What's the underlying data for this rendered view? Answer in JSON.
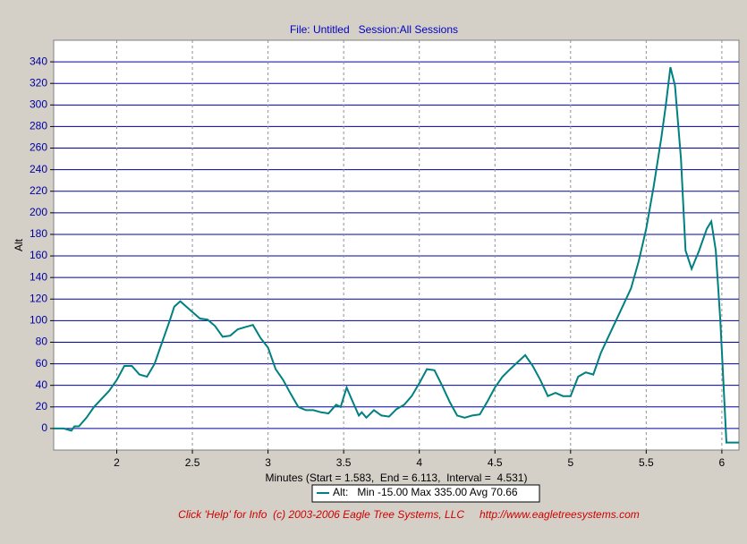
{
  "chart_data": {
    "type": "line",
    "title": "File: Untitled   Session:All Sessions",
    "ylabel": "Alt",
    "xlabel": "Minutes (Start = 1.583,  End = 6.113,  Interval =  4.531)",
    "footer": "Click 'Help' for Info  (c) 2003-2006 Eagle Tree Systems, LLC",
    "footer_url": "http://www.eagletreesystems.com",
    "xlim": [
      1.583,
      6.113
    ],
    "ylim": [
      -20,
      360
    ],
    "xticks": [
      2,
      2.5,
      3,
      3.5,
      4,
      4.5,
      5,
      5.5,
      6
    ],
    "yticks": [
      0,
      20,
      40,
      60,
      80,
      100,
      120,
      140,
      160,
      180,
      200,
      220,
      240,
      260,
      280,
      300,
      320,
      340
    ],
    "grid": true,
    "x": [
      1.583,
      1.65,
      1.7,
      1.72,
      1.75,
      1.8,
      1.85,
      1.95,
      2.0,
      2.05,
      2.1,
      2.15,
      2.2,
      2.25,
      2.3,
      2.35,
      2.38,
      2.42,
      2.5,
      2.55,
      2.6,
      2.65,
      2.7,
      2.75,
      2.8,
      2.85,
      2.9,
      2.95,
      3.0,
      3.05,
      3.1,
      3.15,
      3.2,
      3.25,
      3.3,
      3.35,
      3.4,
      3.45,
      3.48,
      3.52,
      3.55,
      3.6,
      3.62,
      3.65,
      3.7,
      3.75,
      3.8,
      3.85,
      3.9,
      3.95,
      4.0,
      4.05,
      4.1,
      4.15,
      4.2,
      4.25,
      4.3,
      4.35,
      4.4,
      4.45,
      4.5,
      4.55,
      4.6,
      4.7,
      4.75,
      4.8,
      4.85,
      4.9,
      4.95,
      5.0,
      5.05,
      5.1,
      5.15,
      5.2,
      5.3,
      5.35,
      5.4,
      5.45,
      5.5,
      5.55,
      5.6,
      5.63,
      5.66,
      5.69,
      5.73,
      5.76,
      5.8,
      5.85,
      5.9,
      5.93,
      5.96,
      5.99,
      6.03,
      6.06,
      6.113
    ],
    "series": [
      {
        "name": "Alt:   Min -15.00 Max 335.00 Avg 70.66",
        "color": "#008080",
        "values": [
          0,
          0,
          -2,
          2,
          2,
          10,
          20,
          35,
          45,
          58,
          58,
          50,
          48,
          60,
          80,
          100,
          113,
          118,
          108,
          102,
          101,
          95,
          85,
          86,
          92,
          94,
          96,
          84,
          75,
          55,
          45,
          32,
          20,
          17,
          17,
          15,
          14,
          22,
          20,
          38,
          28,
          12,
          15,
          10,
          17,
          12,
          11,
          18,
          22,
          30,
          42,
          55,
          54,
          40,
          25,
          12,
          10,
          12,
          13,
          25,
          38,
          48,
          55,
          68,
          58,
          45,
          30,
          33,
          30,
          30,
          48,
          52,
          50,
          70,
          100,
          115,
          130,
          155,
          185,
          225,
          270,
          300,
          335,
          318,
          250,
          165,
          148,
          165,
          185,
          192,
          165,
          100,
          -13,
          -13,
          -13
        ]
      }
    ]
  }
}
